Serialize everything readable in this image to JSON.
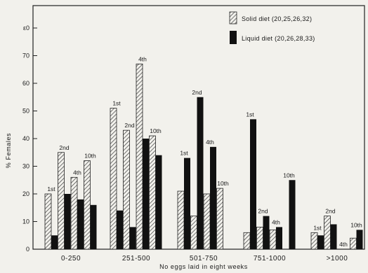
{
  "chart_data": {
    "type": "bar",
    "categories": [
      "0-250",
      "251-500",
      "501-750",
      "751-1000",
      ">1000"
    ],
    "xlabel": "No eggs laid in eight weeks",
    "ylabel": "% Females",
    "ylim": [
      0,
      80
    ],
    "yticks": [
      0,
      10,
      20,
      30,
      40,
      50,
      60,
      70,
      80
    ],
    "ytick_labels": [
      "0",
      "10",
      "20",
      "30",
      "40",
      "50",
      "60",
      "70",
      "ε0"
    ],
    "grid": false,
    "legend_position": "top-right",
    "series": [
      {
        "name": "Solid diet (20,25,26,32)",
        "pattern": "hatched",
        "color": "#8a8a8a",
        "values": [
          [
            20,
            35,
            26,
            32
          ],
          [
            51,
            43,
            67,
            41
          ],
          [
            21,
            12,
            20,
            22
          ],
          [
            6,
            8,
            7,
            0
          ],
          [
            6,
            12,
            0,
            4
          ]
        ]
      },
      {
        "name": "Liquid diet (20,26,28,33)",
        "pattern": "solid",
        "color": "#111111",
        "values": [
          [
            5,
            20,
            18,
            16
          ],
          [
            14,
            8,
            40,
            34
          ],
          [
            33,
            55,
            37,
            0
          ],
          [
            47,
            12,
            8,
            25
          ],
          [
            5,
            9,
            0,
            7
          ]
        ]
      }
    ],
    "bar_labels": [
      [
        [
          "1st",
          0
        ],
        [
          "2nd",
          1
        ],
        [
          "4th",
          2
        ],
        [
          "10th",
          3
        ]
      ],
      [
        [
          "1st",
          0
        ],
        [
          "2nd",
          1
        ],
        [
          "4th",
          2
        ],
        [
          "10th",
          3
        ]
      ],
      [
        [
          "1st",
          0
        ],
        [
          "2nd",
          1
        ],
        [
          "4th",
          2
        ],
        [
          "10th",
          3
        ]
      ],
      [
        [
          "1st",
          0
        ],
        [
          "2nd",
          1
        ],
        [
          "4th",
          2
        ],
        [
          "10th",
          3
        ]
      ],
      [
        [
          "1st",
          0
        ],
        [
          "2nd",
          1
        ],
        [
          "4th",
          2
        ],
        [
          "10th",
          3
        ]
      ]
    ],
    "bar_label_texts": [
      "1st",
      "2nd",
      "4th",
      "10th"
    ]
  }
}
